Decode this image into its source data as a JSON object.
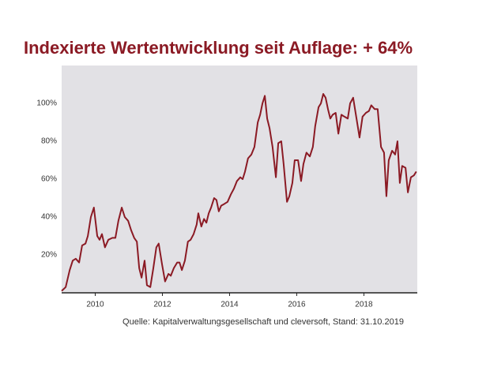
{
  "chart_data": {
    "type": "line",
    "title": "Indexierte Wertentwicklung seit Auflage: + 64%",
    "source": "Quelle: Kapitalverwaltungsgesellschaft und cleversoft, Stand: 31.10.2019",
    "color": "#8b1a24",
    "grid": false,
    "xlim": [
      2009.0,
      2019.59
    ],
    "ylim": [
      0,
      120
    ],
    "xticks": [
      2010,
      2012,
      2014,
      2016,
      2018
    ],
    "yticks": [
      {
        "value": 20,
        "label": "20%"
      },
      {
        "value": 40,
        "label": "40%"
      },
      {
        "value": 60,
        "label": "60%"
      },
      {
        "value": 80,
        "label": "80%"
      },
      {
        "value": 100,
        "label": "100%"
      }
    ],
    "x": [
      2009.0,
      2009.12,
      2009.24,
      2009.33,
      2009.42,
      2009.52,
      2009.61,
      2009.71,
      2009.78,
      2009.87,
      2009.96,
      2010.06,
      2010.13,
      2010.2,
      2010.29,
      2010.39,
      2010.51,
      2010.6,
      2010.69,
      2010.79,
      2010.88,
      2010.98,
      2011.07,
      2011.16,
      2011.24,
      2011.31,
      2011.38,
      2011.47,
      2011.54,
      2011.64,
      2011.73,
      2011.82,
      2011.89,
      2011.99,
      2012.08,
      2012.18,
      2012.25,
      2012.34,
      2012.44,
      2012.51,
      2012.58,
      2012.67,
      2012.76,
      2012.84,
      2012.93,
      2013.02,
      2013.07,
      2013.16,
      2013.24,
      2013.31,
      2013.38,
      2013.45,
      2013.54,
      2013.61,
      2013.68,
      2013.75,
      2013.85,
      2013.94,
      2014.04,
      2014.13,
      2014.22,
      2014.32,
      2014.39,
      2014.46,
      2014.55,
      2014.65,
      2014.74,
      2014.84,
      2014.91,
      2014.98,
      2015.05,
      2015.12,
      2015.19,
      2015.28,
      2015.38,
      2015.45,
      2015.54,
      2015.61,
      2015.71,
      2015.78,
      2015.87,
      2015.94,
      2016.04,
      2016.13,
      2016.2,
      2016.29,
      2016.39,
      2016.48,
      2016.55,
      2016.65,
      2016.72,
      2016.79,
      2016.86,
      2016.93,
      2017.0,
      2017.07,
      2017.16,
      2017.24,
      2017.33,
      2017.42,
      2017.52,
      2017.59,
      2017.68,
      2017.78,
      2017.87,
      2017.96,
      2018.06,
      2018.15,
      2018.22,
      2018.32,
      2018.41,
      2018.51,
      2018.6,
      2018.67,
      2018.74,
      2018.84,
      2018.93,
      2019.0,
      2019.07,
      2019.14,
      2019.24,
      2019.31,
      2019.4,
      2019.49,
      2019.56
    ],
    "values": [
      1,
      3,
      12,
      17,
      18,
      16,
      25,
      26,
      30,
      40,
      45,
      30,
      28,
      31,
      24,
      28,
      29,
      29,
      38,
      45,
      40,
      38,
      33,
      29,
      27,
      13,
      8,
      17,
      4,
      3,
      13,
      24,
      26,
      15,
      6,
      10,
      9,
      13,
      16,
      16,
      12,
      17,
      27,
      28,
      31,
      36,
      42,
      35,
      39,
      37,
      42,
      45,
      50,
      49,
      43,
      46,
      47,
      48,
      52,
      55,
      59,
      61,
      60,
      64,
      71,
      73,
      77,
      90,
      94,
      100,
      104,
      92,
      87,
      77,
      61,
      79,
      80,
      68,
      48,
      51,
      58,
      70,
      70,
      59,
      68,
      74,
      72,
      77,
      88,
      98,
      100,
      105,
      103,
      97,
      92,
      94,
      95,
      84,
      94,
      93,
      92,
      100,
      103,
      92,
      82,
      93,
      95,
      96,
      99,
      97,
      97,
      77,
      74,
      51,
      70,
      75,
      73,
      80,
      58,
      67,
      66,
      53,
      61,
      62,
      64
    ]
  }
}
